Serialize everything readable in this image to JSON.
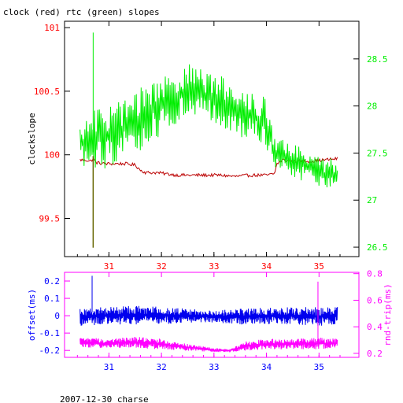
{
  "title": "clock (red) rtc (green) slopes",
  "footer": "2007-12-30 charse",
  "colors": {
    "clock": "#bb0000",
    "rtc": "#00ee00",
    "offset": "#0000ee",
    "rtt": "#ff00ff",
    "axis_left_top": "#ff0000",
    "axis_right_top": "#00ee00",
    "axis_left_bottom": "#0000ff",
    "axis_right_bottom": "#ff00ff",
    "frame": "#000000",
    "frame_bottom": "#ff00ff"
  },
  "chart_data": [
    {
      "type": "line",
      "ylabel": "clockslope",
      "xlim": [
        30.35,
        35.55
      ],
      "ylim": [
        99.2,
        101.05
      ],
      "y2lim": [
        26.4,
        28.9
      ],
      "xticks": [
        31,
        32,
        33,
        34,
        35
      ],
      "yticks": [
        99.5,
        100,
        100.5,
        101
      ],
      "y2ticks": [
        26.5,
        27,
        27.5,
        28,
        28.5
      ],
      "series": [
        {
          "name": "clock",
          "axis": "left",
          "x": [
            30.45,
            30.55,
            30.65,
            30.7,
            30.75,
            30.9,
            31.1,
            31.3,
            31.5,
            31.6,
            31.7,
            31.9,
            32.1,
            32.3,
            32.5,
            32.8,
            33.1,
            33.4,
            33.7,
            34.0,
            34.15,
            34.2,
            34.3,
            34.5,
            34.7,
            34.9,
            35.1,
            35.35
          ],
          "values": [
            99.96,
            99.96,
            99.95,
            99.97,
            99.94,
            99.93,
            99.93,
            99.93,
            99.92,
            99.88,
            99.86,
            99.86,
            99.85,
            99.84,
            99.84,
            99.84,
            99.84,
            99.83,
            99.84,
            99.84,
            99.85,
            99.93,
            99.96,
            99.95,
            99.95,
            99.95,
            99.96,
            99.97
          ]
        },
        {
          "name": "rtc",
          "axis": "right",
          "x": [
            30.45,
            30.55,
            30.65,
            30.75,
            30.9,
            31.0,
            31.15,
            31.3,
            31.45,
            31.6,
            31.75,
            31.9,
            32.0,
            32.2,
            32.4,
            32.6,
            32.8,
            33.0,
            33.2,
            33.4,
            33.6,
            33.8,
            34.0,
            34.15,
            34.3,
            34.5,
            34.7,
            34.9,
            35.1,
            35.35
          ],
          "lower": [
            27.4,
            27.35,
            27.3,
            27.35,
            27.3,
            27.35,
            27.4,
            27.45,
            27.45,
            27.5,
            27.6,
            27.65,
            27.7,
            27.75,
            27.8,
            27.85,
            27.85,
            27.8,
            27.75,
            27.7,
            27.65,
            27.6,
            27.5,
            27.35,
            27.3,
            27.25,
            27.2,
            27.2,
            27.1,
            27.05
          ],
          "upper": [
            27.8,
            27.85,
            27.9,
            28.0,
            28.0,
            28.0,
            28.05,
            28.1,
            28.15,
            28.2,
            28.25,
            28.3,
            28.35,
            28.4,
            28.45,
            28.45,
            28.4,
            28.35,
            28.3,
            28.25,
            28.2,
            28.15,
            28.1,
            27.7,
            27.65,
            27.6,
            27.55,
            27.5,
            27.45,
            27.45
          ]
        }
      ]
    },
    {
      "type": "line",
      "ylabel": "offset(ms)",
      "y2label": "rnd-trip(ms)",
      "xlim": [
        30.35,
        35.55
      ],
      "ylim": [
        -0.24,
        0.25
      ],
      "y2lim": [
        0.17,
        0.81
      ],
      "xticks": [
        31,
        32,
        33,
        34,
        35
      ],
      "yticks": [
        -0.2,
        -0.1,
        0,
        0.1,
        0.2
      ],
      "y2ticks": [
        0.2,
        0.4,
        0.6,
        0.8
      ],
      "series": [
        {
          "name": "offset",
          "axis": "left",
          "x": [
            30.45,
            31.0,
            31.5,
            32.0,
            32.5,
            33.0,
            33.5,
            34.0,
            34.5,
            35.0,
            35.35
          ],
          "lower": [
            -0.06,
            -0.05,
            -0.05,
            -0.05,
            -0.04,
            -0.04,
            -0.05,
            -0.05,
            -0.05,
            -0.06,
            -0.05
          ],
          "upper": [
            0.05,
            0.05,
            0.06,
            0.05,
            0.04,
            0.03,
            0.04,
            0.05,
            0.05,
            0.05,
            0.05
          ]
        },
        {
          "name": "rtt",
          "axis": "right",
          "x": [
            30.45,
            31.0,
            31.5,
            32.0,
            32.5,
            33.0,
            33.3,
            33.6,
            34.0,
            34.5,
            35.0,
            35.35
          ],
          "lower": [
            0.24,
            0.24,
            0.24,
            0.23,
            0.22,
            0.21,
            0.21,
            0.22,
            0.23,
            0.23,
            0.23,
            0.24
          ],
          "upper": [
            0.32,
            0.31,
            0.33,
            0.31,
            0.27,
            0.24,
            0.23,
            0.29,
            0.31,
            0.31,
            0.32,
            0.31
          ]
        }
      ]
    }
  ]
}
